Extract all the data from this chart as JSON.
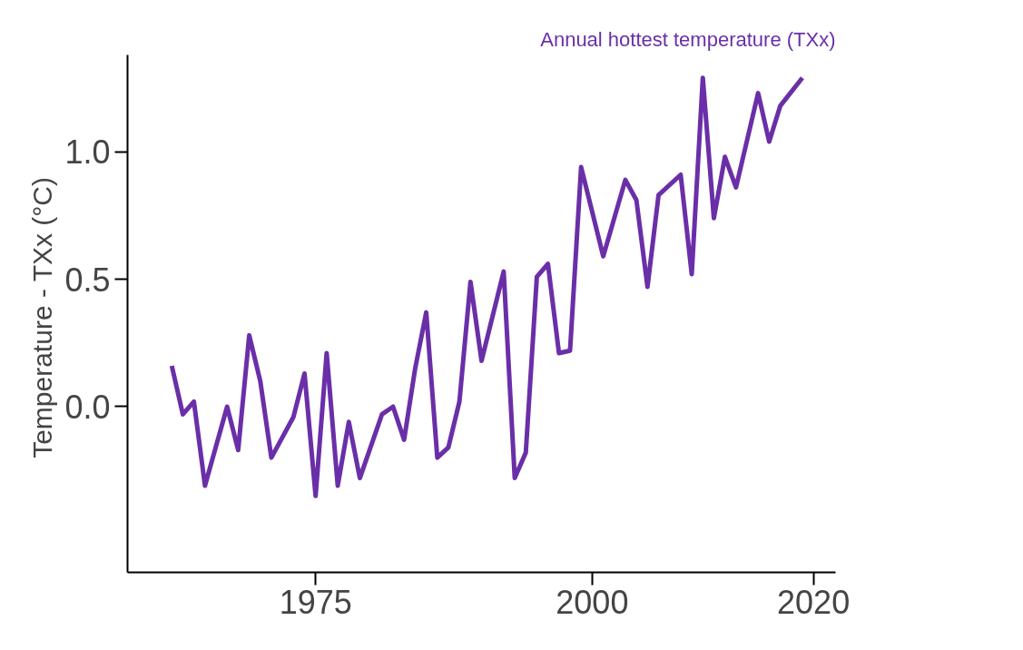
{
  "chart_data": {
    "type": "line",
    "title": "Annual hottest temperature (TXx)",
    "ylabel": "Temperature - TXx  (°C)",
    "x": [
      1962,
      1963,
      1964,
      1965,
      1967,
      1968,
      1969,
      1970,
      1971,
      1973,
      1974,
      1975,
      1976,
      1977,
      1978,
      1979,
      1981,
      1982,
      1983,
      1984,
      1985,
      1986,
      1987,
      1988,
      1989,
      1990,
      1992,
      1993,
      1994,
      1995,
      1996,
      1997,
      1998,
      1999,
      2001,
      2003,
      2004,
      2005,
      2006,
      2008,
      2009,
      2010,
      2011,
      2012,
      2013,
      2015,
      2016,
      2017,
      2019
    ],
    "series": [
      {
        "color": "#6a2fa8",
        "values": [
          0.16,
          -0.03,
          0.02,
          -0.31,
          0.0,
          -0.17,
          0.28,
          0.1,
          -0.2,
          -0.04,
          0.13,
          -0.35,
          0.21,
          -0.31,
          -0.06,
          -0.28,
          -0.03,
          0.0,
          -0.13,
          0.15,
          0.37,
          -0.2,
          -0.16,
          0.02,
          0.49,
          0.18,
          0.53,
          -0.28,
          -0.18,
          0.51,
          0.56,
          0.21,
          0.22,
          0.94,
          0.59,
          0.89,
          0.81,
          0.47,
          0.83,
          0.91,
          0.52,
          1.29,
          0.74,
          0.98,
          0.86,
          1.23,
          1.04,
          1.18,
          1.29
        ]
      }
    ],
    "xlim": [
      1958,
      2022
    ],
    "xticks": [
      1975,
      2000,
      2020
    ],
    "ylim": [
      -0.65,
      1.38
    ],
    "yticks": [
      {
        "value": 0,
        "label": "0.0"
      },
      {
        "value": 0.5,
        "label": "0.5"
      },
      {
        "value": 1,
        "label": "1.0"
      }
    ],
    "grid": false,
    "marker": "none",
    "line_style": "solid"
  }
}
